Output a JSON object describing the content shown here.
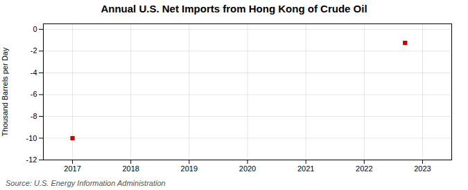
{
  "chart_data": {
    "type": "scatter",
    "title": "Annual U.S. Net Imports from Hong Kong of Crude Oil",
    "ylabel": "Thousand Barrels per Day",
    "annotation": "Source: U.S. Energy Information Administration",
    "x": [
      2017,
      2022.7
    ],
    "values": [
      -10.0,
      -1.25
    ],
    "color": "#cc0000",
    "marker": "square",
    "xlim": [
      2016.5,
      2023.5
    ],
    "ylim": [
      -12,
      0.5
    ],
    "xticks": [
      2017,
      2018,
      2019,
      2020,
      2021,
      2022,
      2023
    ],
    "yticks": [
      0,
      -2,
      -4,
      -6,
      -8,
      -10,
      -12
    ],
    "grid": true
  }
}
